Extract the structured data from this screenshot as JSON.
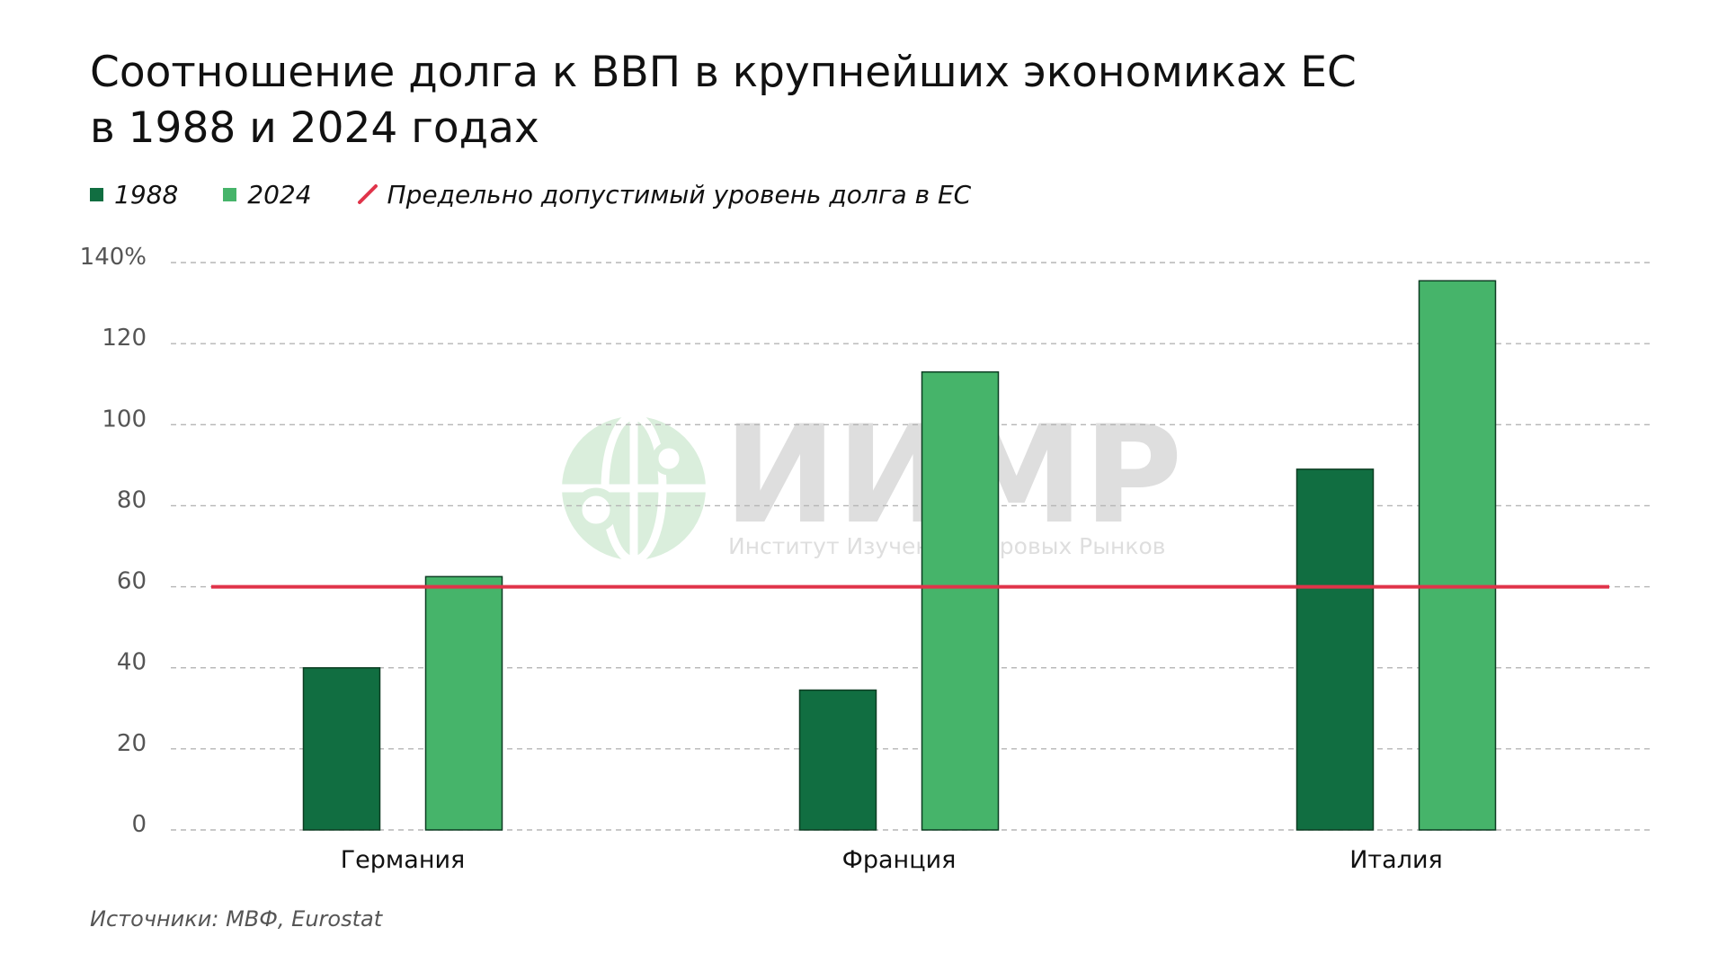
{
  "title": {
    "line1": "Соотношение долга к ВВП в крупнейших экономиках ЕС",
    "line2": "в 1988 и 2024 годах"
  },
  "legend": {
    "series_1988": "1988",
    "series_2024": "2024",
    "threshold": "Предельно допустимый уровень долга в ЕС"
  },
  "watermark": {
    "title": "ИИМР",
    "subtitle": "Институт Изучения Мировых Рынков"
  },
  "source": "Источники: МВФ, Eurostat",
  "colors": {
    "series_1988": "#116e41",
    "series_2024": "#46b46a",
    "threshold": "#e0344a",
    "grid": "#b5b5b5"
  },
  "chart_data": {
    "type": "bar",
    "categories": [
      "Германия",
      "Франция",
      "Италия"
    ],
    "series": [
      {
        "name": "1988",
        "values": [
          40,
          34.5,
          89
        ]
      },
      {
        "name": "2024",
        "values": [
          62.5,
          113,
          135.5
        ]
      }
    ],
    "threshold": {
      "label": "Предельно допустимый уровень долга в ЕС",
      "value": 60
    },
    "ylim": [
      0,
      140
    ],
    "yticks": [
      0,
      20,
      40,
      60,
      80,
      100,
      120,
      140
    ],
    "ytick_labels": [
      "0",
      "20",
      "40",
      "60",
      "80",
      "100",
      "120",
      "140%"
    ],
    "xlabel": "",
    "ylabel": "",
    "grid": true,
    "legend_position": "top-left"
  }
}
